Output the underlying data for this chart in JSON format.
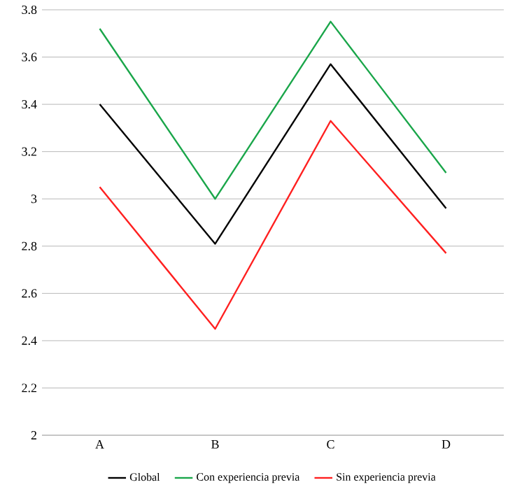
{
  "chart_data": {
    "type": "line",
    "categories": [
      "A",
      "B",
      "C",
      "D"
    ],
    "series": [
      {
        "name": "Global",
        "color": "#000000",
        "values": [
          3.4,
          2.81,
          3.57,
          2.96
        ]
      },
      {
        "name": "Con experiencia previa",
        "color": "#1aa64a",
        "values": [
          3.72,
          3.0,
          3.75,
          3.11
        ]
      },
      {
        "name": "Sin experiencia previa",
        "color": "#ff2020",
        "values": [
          3.05,
          2.45,
          3.33,
          2.77
        ]
      }
    ],
    "ylim": [
      2,
      3.8
    ],
    "yticks": [
      2,
      2.2,
      2.4,
      2.6,
      2.8,
      3,
      3.2,
      3.4,
      3.6,
      3.8
    ],
    "grid": "y",
    "legend": "bottom",
    "marker": "none",
    "line_style": "solid"
  }
}
